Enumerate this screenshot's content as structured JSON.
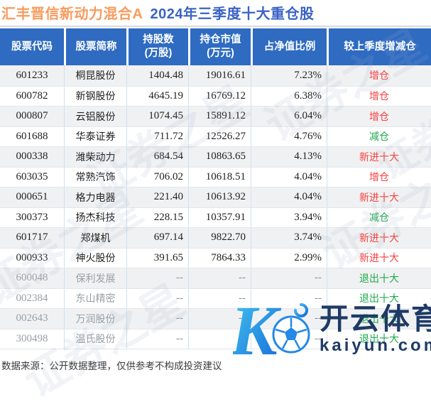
{
  "title": {
    "fund": "汇丰晋信新动力混合A",
    "report": "2024年三季度十大重仓股"
  },
  "table": {
    "columns": [
      {
        "key": "code",
        "lines": [
          "股票代码"
        ]
      },
      {
        "key": "name",
        "lines": [
          "股票简称"
        ]
      },
      {
        "key": "shares",
        "lines": [
          "持股数",
          "(万股)"
        ]
      },
      {
        "key": "value",
        "lines": [
          "持仓市值",
          "(万元)"
        ]
      },
      {
        "key": "ratio",
        "lines": [
          "占净值比例"
        ]
      },
      {
        "key": "change",
        "lines": [
          "较上季度增减仓"
        ]
      }
    ],
    "rows": [
      {
        "code": "601233",
        "name": "桐昆股份",
        "shares": "1404.48",
        "value": "19016.61",
        "ratio": "7.23%",
        "change": "增仓",
        "change_type": "increase",
        "exited": false
      },
      {
        "code": "600782",
        "name": "新钢股份",
        "shares": "4645.19",
        "value": "16769.12",
        "ratio": "6.38%",
        "change": "增仓",
        "change_type": "increase",
        "exited": false
      },
      {
        "code": "000807",
        "name": "云铝股份",
        "shares": "1074.45",
        "value": "15891.12",
        "ratio": "6.04%",
        "change": "增仓",
        "change_type": "increase",
        "exited": false
      },
      {
        "code": "601688",
        "name": "华泰证券",
        "shares": "711.72",
        "value": "12526.27",
        "ratio": "4.76%",
        "change": "减仓",
        "change_type": "decrease",
        "exited": false
      },
      {
        "code": "000338",
        "name": "潍柴动力",
        "shares": "684.54",
        "value": "10863.65",
        "ratio": "4.13%",
        "change": "新进十大",
        "change_type": "new",
        "exited": false
      },
      {
        "code": "603035",
        "name": "常熟汽饰",
        "shares": "706.02",
        "value": "10618.51",
        "ratio": "4.04%",
        "change": "增仓",
        "change_type": "increase",
        "exited": false
      },
      {
        "code": "000651",
        "name": "格力电器",
        "shares": "221.40",
        "value": "10613.92",
        "ratio": "4.04%",
        "change": "新进十大",
        "change_type": "new",
        "exited": false
      },
      {
        "code": "300373",
        "name": "扬杰科技",
        "shares": "228.15",
        "value": "10357.91",
        "ratio": "3.94%",
        "change": "减仓",
        "change_type": "decrease",
        "exited": false
      },
      {
        "code": "601717",
        "name": "郑煤机",
        "shares": "697.14",
        "value": "9822.70",
        "ratio": "3.74%",
        "change": "新进十大",
        "change_type": "new",
        "exited": false
      },
      {
        "code": "000933",
        "name": "神火股份",
        "shares": "391.65",
        "value": "7864.33",
        "ratio": "2.99%",
        "change": "新进十大",
        "change_type": "new",
        "exited": false
      },
      {
        "code": "600048",
        "name": "保利发展",
        "shares": "--",
        "value": "--",
        "ratio": "--",
        "change": "退出十大",
        "change_type": "exit",
        "exited": true
      },
      {
        "code": "002384",
        "name": "东山精密",
        "shares": "--",
        "value": "--",
        "ratio": "--",
        "change": "退出十大",
        "change_type": "exit",
        "exited": true
      },
      {
        "code": "002643",
        "name": "万润股份",
        "shares": "--",
        "value": "--",
        "ratio": "--",
        "change": "退出十大",
        "change_type": "exit",
        "exited": true
      },
      {
        "code": "300498",
        "name": "温氏股份",
        "shares": "--",
        "value": "--",
        "ratio": "--",
        "change": "退出十大",
        "change_type": "exit",
        "exited": true
      }
    ]
  },
  "footer": {
    "source": "数据来源：公开数据整理，仅供参考不构成投资建议"
  },
  "watermark": {
    "diagonal_text": "证券之星",
    "brand": "开云体育",
    "domain": "kaiyun.com",
    "logo_letter": "K"
  },
  "colors": {
    "header_bg": "#2e6bc1",
    "title_fund_orange": "#f99b5d",
    "title_report_blue": "#3b63c5",
    "increase_red": "#fa3e3e",
    "decrease_green": "#1fa94e",
    "row_alt_bg": "#f0f1f2",
    "exited_text_gray": "#9aa0a6",
    "logo_navy": "#1e3a66",
    "logo_gradient_start": "#45c8f0",
    "logo_gradient_end": "#1568d8"
  }
}
